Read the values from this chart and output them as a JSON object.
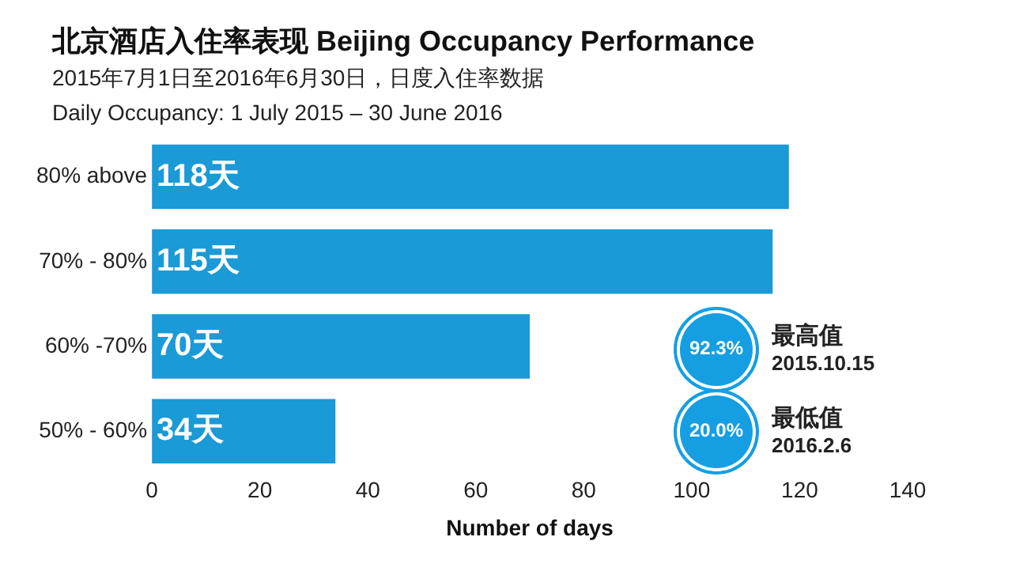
{
  "chart_data": {
    "type": "bar",
    "orientation": "horizontal",
    "title": "北京酒店入住率表现 Beijing Occupancy Performance",
    "subtitle": "2015年7月1日至2016年6月30日，日度入住率数据\nDaily Occupancy: 1 July 2015 – 30 June 2016",
    "xlabel": "Number of days",
    "categories": [
      "80% above",
      "70% - 80%",
      "60% -70%",
      "50% - 60%"
    ],
    "values": [
      118,
      115,
      70,
      34
    ],
    "color": "#1a9ad6",
    "value_labels": [
      "118天",
      "115天",
      "70天",
      "34天"
    ],
    "xlim": [
      0,
      140
    ],
    "xticks": [
      0,
      20,
      40,
      60,
      80,
      100,
      120,
      140
    ],
    "grid": false,
    "legend": false,
    "annotations": [
      "92.3%",
      "最高值",
      "2015.10.15",
      "20.0%",
      "最低值",
      "2016.2.6"
    ]
  }
}
